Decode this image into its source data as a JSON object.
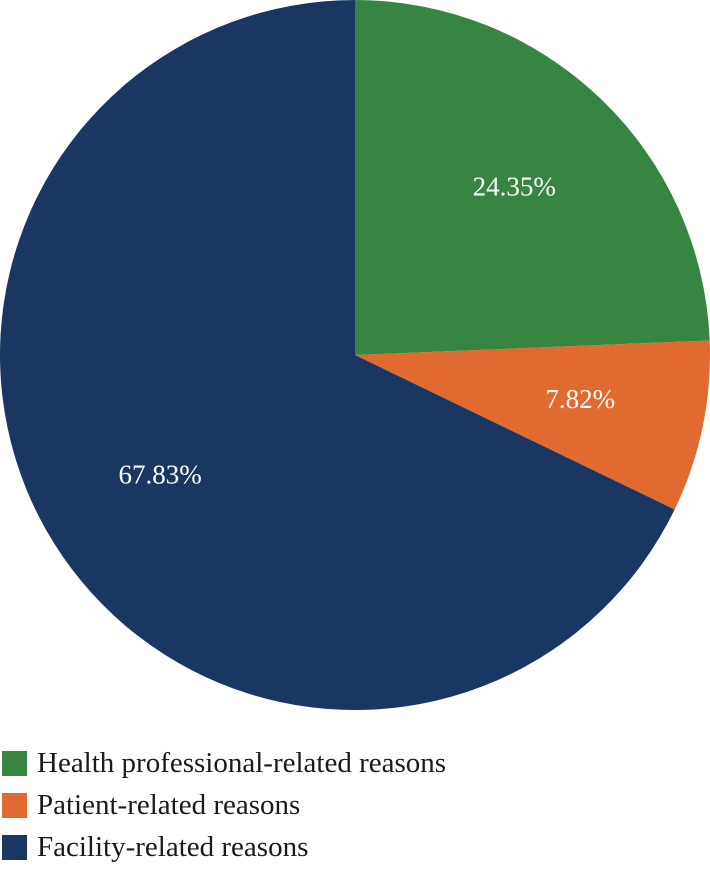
{
  "chart_data": {
    "type": "pie",
    "title": "",
    "legend_placement": "bottom-left",
    "slices": [
      {
        "name": "Health professional-related reasons",
        "value": 24.35,
        "label": "24.35%",
        "color": "#368641"
      },
      {
        "name": "Patient-related reasons",
        "value": 7.82,
        "label": "7.82%",
        "color": "#e06a30"
      },
      {
        "name": "Facility-related reasons",
        "value": 67.83,
        "label": "67.83%",
        "color": "#1a3764"
      }
    ]
  }
}
